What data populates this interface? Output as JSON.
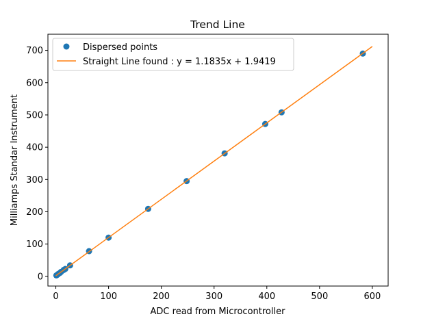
{
  "chart_data": {
    "type": "scatter",
    "title": "Trend Line",
    "xlabel": "ADC read from Microcontroller",
    "ylabel": "Milliamps Standar Instrument",
    "xlim": [
      -15,
      630
    ],
    "ylim": [
      -30,
      750
    ],
    "xticks": [
      0,
      100,
      200,
      300,
      400,
      500,
      600
    ],
    "yticks": [
      0,
      100,
      200,
      300,
      400,
      500,
      600,
      700
    ],
    "grid": false,
    "legend_position": "upper-left",
    "series": [
      {
        "name": "Dispersed points",
        "kind": "scatter",
        "color": "#1f77b4",
        "x": [
          1,
          3,
          5,
          8,
          10,
          15,
          18,
          27,
          63,
          100,
          175,
          248,
          320,
          397,
          428,
          582
        ],
        "y": [
          3,
          5,
          8,
          11,
          14,
          20,
          23,
          34,
          78,
          120,
          209,
          295,
          381,
          472,
          508,
          690
        ]
      },
      {
        "name": "Straight Line found : y = 1.1835x + 1.9419",
        "kind": "line",
        "color": "#ff7f0e",
        "slope": 1.1835,
        "intercept": 1.9419,
        "x_range": [
          0,
          600
        ]
      }
    ]
  }
}
